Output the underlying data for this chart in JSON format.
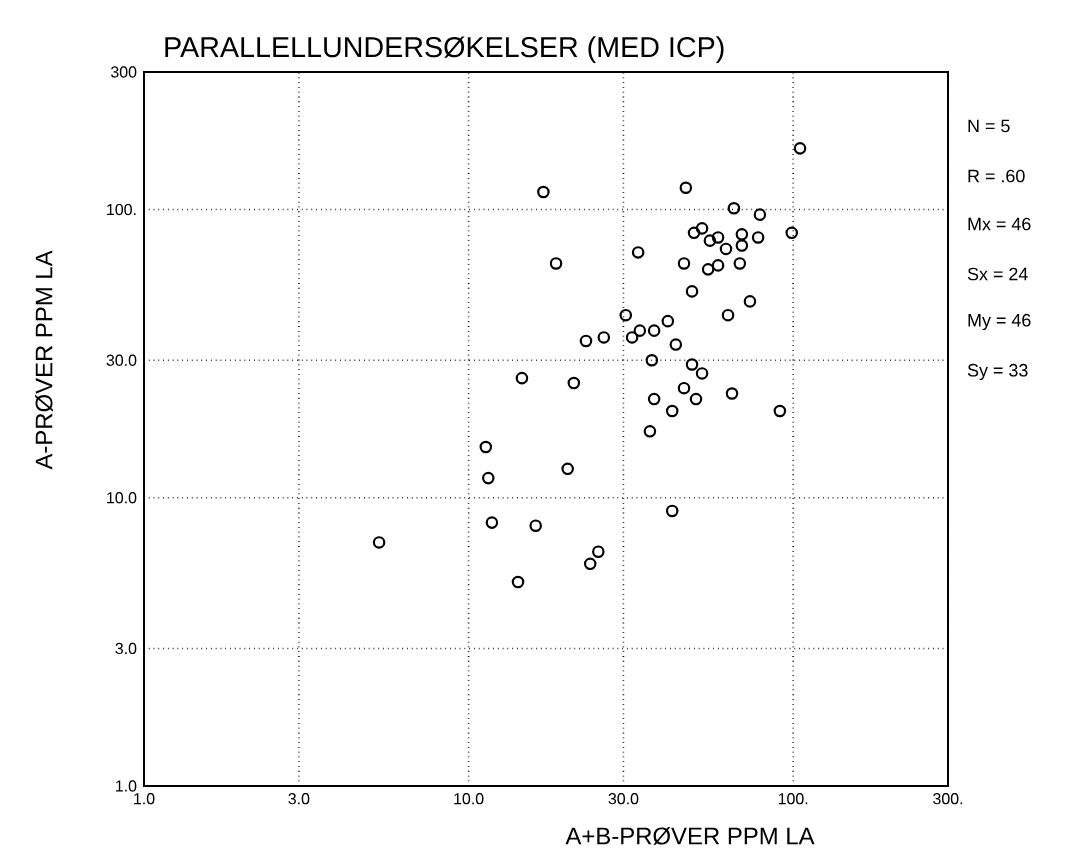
{
  "chart_data": {
    "type": "scatter",
    "title": "PARALLELLUNDERSØKELSER (MED ICP)",
    "xlabel": "A+B-PRØVER    PPM LA",
    "ylabel": "A-PRØVER    PPM LA",
    "log": "xy",
    "grid": true,
    "marker": "circle",
    "xlim": [
      1,
      300
    ],
    "ylim": [
      1,
      300
    ],
    "xticks": [
      {
        "value": 1,
        "label": "1.0"
      },
      {
        "value": 3,
        "label": "3.0"
      },
      {
        "value": 10,
        "label": "10.0"
      },
      {
        "value": 30,
        "label": "30.0"
      },
      {
        "value": 100,
        "label": "100."
      },
      {
        "value": 300,
        "label": "300."
      }
    ],
    "yticks": [
      {
        "value": 1,
        "label": "1.0"
      },
      {
        "value": 3,
        "label": "3.0"
      },
      {
        "value": 10,
        "label": "10.0"
      },
      {
        "value": 30,
        "label": "30.0"
      },
      {
        "value": 100,
        "label": "100."
      },
      {
        "value": 300,
        "label": "300"
      }
    ],
    "annotations": [
      "N = 5",
      "R = .60",
      "Mx = 46",
      "Sx = 24",
      "My = 46",
      "Sy = 33"
    ],
    "series": [
      {
        "color": "#000000",
        "x": [
          17.0,
          46.7,
          65.7,
          79,
          99,
          49.5,
          52.4,
          55.4,
          58.7,
          62.1,
          69.5,
          69.5,
          78,
          33.3,
          18.6,
          46.1,
          54.7,
          58.7,
          68.5,
          48.8,
          73.6,
          63,
          30.5,
          41.1,
          33.7,
          37.3,
          31.9,
          26.1,
          23,
          43.5,
          36.7,
          48.8,
          52.4,
          14.6,
          21.1,
          46.1,
          50.2,
          64.8,
          37.3,
          42.4,
          91,
          36.2,
          11.3,
          105,
          11.5,
          20.2,
          11.8,
          16.1,
          5.3,
          25.1,
          23.7,
          14.2,
          42.4
        ],
        "values": [
          115,
          119,
          101,
          96,
          83,
          83,
          86,
          78,
          80,
          73,
          82,
          75,
          80,
          71,
          65,
          65,
          62,
          64,
          65,
          52,
          48,
          43,
          43,
          41,
          38,
          38,
          36,
          36,
          35,
          34,
          30,
          29,
          27,
          26,
          25,
          24,
          22,
          23,
          22,
          20,
          20,
          17,
          15,
          163,
          11.7,
          12.6,
          8.2,
          8.0,
          7.0,
          6.5,
          5.9,
          5.1,
          9.0
        ]
      }
    ]
  }
}
